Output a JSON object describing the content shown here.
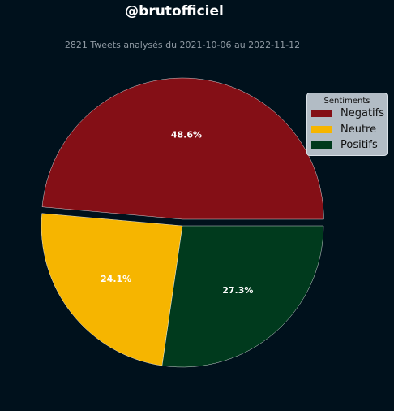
{
  "header": {
    "title": "@brutofficiel",
    "subtitle": "2821 Tweets analysés du 2021-10-06 au 2022-11-12"
  },
  "legend": {
    "title": "Sentiments"
  },
  "chart_data": {
    "type": "pie",
    "title": "@brutofficiel",
    "subtitle": "2821 Tweets analysés du 2021-10-06 au 2022-11-12",
    "legend_title": "Sentiments",
    "legend_position": "top-right",
    "slices": [
      {
        "label": "Negatifs",
        "value": 48.6,
        "display": "48.6%",
        "color": "#840f16",
        "exploded": true
      },
      {
        "label": "Neutre",
        "value": 24.1,
        "display": "24.1%",
        "color": "#f6b500",
        "exploded": false
      },
      {
        "label": "Positifs",
        "value": 27.3,
        "display": "27.3%",
        "color": "#003a1d",
        "exploded": false
      }
    ]
  }
}
